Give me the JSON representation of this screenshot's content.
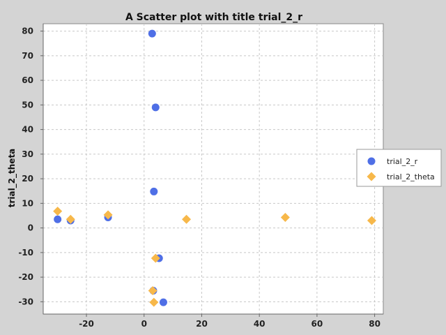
{
  "chart_data": {
    "type": "scatter",
    "title": "A Scatter plot with title trial_2_r",
    "xlabel": "",
    "ylabel": "trial_2_theta",
    "xlim": [
      -35,
      83
    ],
    "ylim": [
      -35,
      83
    ],
    "xticks": [
      -20,
      0,
      20,
      40,
      60,
      80
    ],
    "yticks": [
      -30,
      -20,
      -10,
      0,
      10,
      20,
      30,
      40,
      50,
      60,
      70,
      80
    ],
    "grid": true,
    "legend_position": "right",
    "colors": {
      "trial_2_r": "#4f6fe6",
      "trial_2_theta": "#f7b84a",
      "background": "#d4d4d4",
      "plot_bg": "#ffffff",
      "grid": "#c8c8c8"
    },
    "series": [
      {
        "name": "trial_2_r",
        "marker": "circle",
        "points": [
          [
            2.8,
            79
          ],
          [
            4.0,
            49
          ],
          [
            3.4,
            14.8
          ],
          [
            -30.0,
            3.5
          ],
          [
            -25.5,
            3.0
          ],
          [
            -12.5,
            4.3
          ],
          [
            5.2,
            -12.3
          ],
          [
            3.2,
            -25.5
          ],
          [
            6.7,
            -30.2
          ]
        ]
      },
      {
        "name": "trial_2_theta",
        "marker": "diamond",
        "points": [
          [
            -30.0,
            6.8
          ],
          [
            -25.5,
            3.5
          ],
          [
            -12.5,
            5.3
          ],
          [
            14.7,
            3.5
          ],
          [
            49.0,
            4.3
          ],
          [
            79.0,
            3.0
          ],
          [
            4.0,
            -12.3
          ],
          [
            3.0,
            -25.5
          ],
          [
            3.4,
            -30.2
          ]
        ]
      }
    ]
  }
}
